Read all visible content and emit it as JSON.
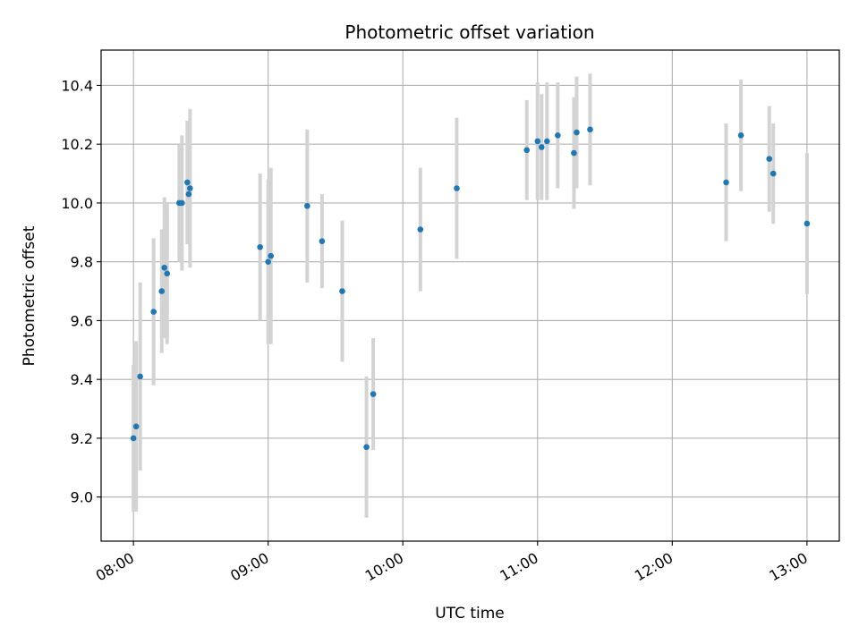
{
  "chart_data": {
    "type": "scatter",
    "title": "Photometric offset variation",
    "xlabel": "UTC time",
    "ylabel": "Photometric offset",
    "x_unit": "hours",
    "xlim": [
      7.76,
      13.24
    ],
    "ylim": [
      8.85,
      10.52
    ],
    "x_ticks": [
      {
        "value": 8,
        "label": "08:00"
      },
      {
        "value": 9,
        "label": "09:00"
      },
      {
        "value": 10,
        "label": "10:00"
      },
      {
        "value": 11,
        "label": "11:00"
      },
      {
        "value": 12,
        "label": "12:00"
      },
      {
        "value": 13,
        "label": "13:00"
      }
    ],
    "y_ticks": [
      {
        "value": 9.0,
        "label": "9.0"
      },
      {
        "value": 9.2,
        "label": "9.2"
      },
      {
        "value": 9.4,
        "label": "9.4"
      },
      {
        "value": 9.6,
        "label": "9.6"
      },
      {
        "value": 9.8,
        "label": "9.8"
      },
      {
        "value": 10.0,
        "label": "10.0"
      },
      {
        "value": 10.2,
        "label": "10.2"
      },
      {
        "value": 10.4,
        "label": "10.4"
      }
    ],
    "grid": true,
    "point_color": "#1f77b4",
    "errorbar_color": "#d3d3d3",
    "series": [
      {
        "points": [
          {
            "x": 8.0,
            "y": 9.2,
            "err": 0.25
          },
          {
            "x": 8.02,
            "y": 9.24,
            "err": 0.29
          },
          {
            "x": 8.05,
            "y": 9.41,
            "err": 0.32
          },
          {
            "x": 8.15,
            "y": 9.63,
            "err": 0.25
          },
          {
            "x": 8.21,
            "y": 9.7,
            "err": 0.21
          },
          {
            "x": 8.23,
            "y": 9.78,
            "err": 0.24
          },
          {
            "x": 8.25,
            "y": 9.76,
            "err": 0.24
          },
          {
            "x": 8.34,
            "y": 10.0,
            "err": 0.2
          },
          {
            "x": 8.36,
            "y": 10.0,
            "err": 0.23
          },
          {
            "x": 8.4,
            "y": 10.07,
            "err": 0.21
          },
          {
            "x": 8.41,
            "y": 10.03,
            "err": 0.17
          },
          {
            "x": 8.42,
            "y": 10.05,
            "err": 0.27
          },
          {
            "x": 8.94,
            "y": 9.85,
            "err": 0.25
          },
          {
            "x": 9.0,
            "y": 9.8,
            "err": 0.28
          },
          {
            "x": 9.02,
            "y": 9.82,
            "err": 0.3
          },
          {
            "x": 9.29,
            "y": 9.99,
            "err": 0.26
          },
          {
            "x": 9.4,
            "y": 9.87,
            "err": 0.16
          },
          {
            "x": 9.55,
            "y": 9.7,
            "err": 0.24
          },
          {
            "x": 9.73,
            "y": 9.17,
            "err": 0.24
          },
          {
            "x": 9.78,
            "y": 9.35,
            "err": 0.19
          },
          {
            "x": 10.13,
            "y": 9.91,
            "err": 0.21
          },
          {
            "x": 10.4,
            "y": 10.05,
            "err": 0.24
          },
          {
            "x": 10.92,
            "y": 10.18,
            "err": 0.17
          },
          {
            "x": 11.0,
            "y": 10.21,
            "err": 0.2
          },
          {
            "x": 11.03,
            "y": 10.19,
            "err": 0.18
          },
          {
            "x": 11.07,
            "y": 10.21,
            "err": 0.2
          },
          {
            "x": 11.15,
            "y": 10.23,
            "err": 0.18
          },
          {
            "x": 11.27,
            "y": 10.17,
            "err": 0.19
          },
          {
            "x": 11.29,
            "y": 10.24,
            "err": 0.19
          },
          {
            "x": 11.39,
            "y": 10.25,
            "err": 0.19
          },
          {
            "x": 12.4,
            "y": 10.07,
            "err": 0.2
          },
          {
            "x": 12.51,
            "y": 10.23,
            "err": 0.19
          },
          {
            "x": 12.72,
            "y": 10.15,
            "err": 0.18
          },
          {
            "x": 12.75,
            "y": 10.1,
            "err": 0.17
          },
          {
            "x": 13.0,
            "y": 9.93,
            "err": 0.24
          }
        ]
      }
    ]
  }
}
